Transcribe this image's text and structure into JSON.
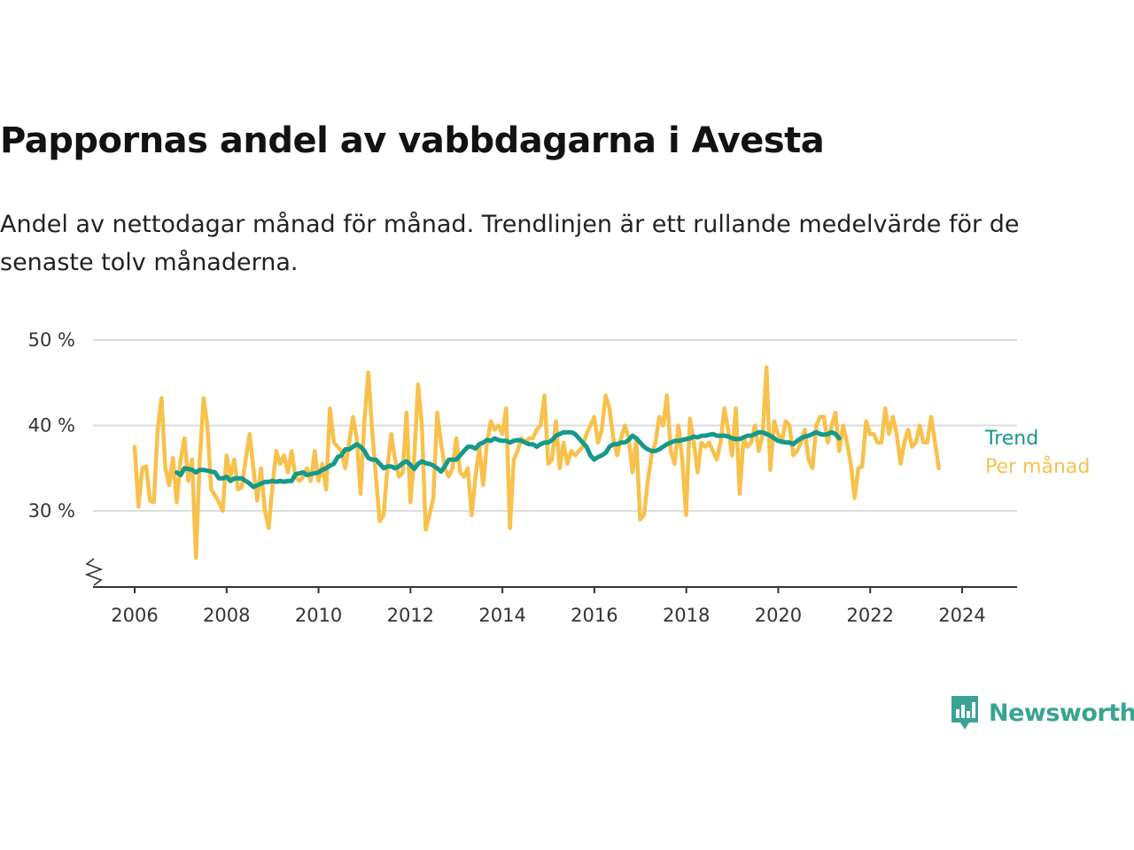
{
  "header": {
    "title": "Pappornas andel av vabbdagarna i Avesta",
    "subtitle": "Andel av nettodagar månad för månad. Trendlinjen är ett rullande medelvärde för de senaste tolv månaderna."
  },
  "brand": {
    "name": "Newsworthy"
  },
  "colors": {
    "monthly": "#f7c14b",
    "trend": "#14998a",
    "grid": "#dddddd",
    "axis": "#333333",
    "brand": "#3aa393"
  },
  "chart_data": {
    "type": "line",
    "x_unit": "year",
    "ylim": [
      20,
      50
    ],
    "y_ticks": [
      30,
      40,
      50
    ],
    "y_tick_labels": [
      "30 %",
      "40 %",
      "50 %"
    ],
    "y_axis_break": true,
    "x_ticks": [
      2006,
      2008,
      2010,
      2012,
      2014,
      2016,
      2018,
      2020,
      2022,
      2024
    ],
    "x_tick_labels": [
      "2006",
      "2008",
      "2010",
      "2012",
      "2014",
      "2016",
      "2018",
      "2020",
      "2022",
      "2024"
    ],
    "grid": true,
    "legend_placement": "right-end-of-lines",
    "series": [
      {
        "name": "Per månad",
        "x_start": 2006.0,
        "step": 0.0833,
        "values": [
          37.5,
          30.5,
          35,
          35.2,
          31.2,
          31,
          39.5,
          43.2,
          35,
          33,
          36.2,
          31,
          36,
          38.5,
          33.5,
          36,
          24.5,
          36,
          43.2,
          40,
          32.5,
          31.8,
          31,
          30,
          36.5,
          34,
          36,
          32.5,
          32.8,
          36,
          39,
          35,
          31.2,
          35,
          30,
          28,
          33,
          37,
          35.5,
          36.5,
          34.5,
          37,
          34,
          33.5,
          34,
          35,
          33.5,
          37,
          33.5,
          35.5,
          32.5,
          42,
          38,
          37.5,
          37,
          35,
          38,
          41,
          38.5,
          32,
          40.5,
          46.2,
          39.5,
          34,
          28.8,
          29.5,
          35,
          39,
          36,
          34,
          34.5,
          41.5,
          31,
          36,
          44.8,
          40,
          27.8,
          29.5,
          31.5,
          41.5,
          38,
          35,
          34,
          35,
          38.5,
          34.5,
          34,
          35,
          29.5,
          34,
          37.5,
          33,
          38,
          40.5,
          39.5,
          40,
          39,
          42,
          28,
          36,
          37,
          38.5,
          38,
          38.5,
          38.5,
          39.5,
          40,
          43.5,
          35.5,
          36,
          40.5,
          35,
          38,
          35.5,
          37,
          36.5,
          37,
          37.5,
          39,
          40,
          41,
          38,
          39.5,
          43.5,
          42,
          38.5,
          36.5,
          38.5,
          40,
          38.5,
          34.5,
          38.5,
          29,
          29.5,
          33.5,
          36.5,
          38,
          41,
          40,
          43.5,
          37,
          35.5,
          40,
          36,
          29.5,
          40.8,
          38,
          34.5,
          38,
          37.5,
          38,
          37,
          36,
          38,
          42,
          39.5,
          36.5,
          42,
          32,
          38.5,
          37.5,
          38,
          40,
          37,
          39,
          46.8,
          34.8,
          40.5,
          39,
          38,
          40.5,
          40,
          36.5,
          37,
          38,
          39.5,
          36,
          35,
          40,
          41,
          41,
          38,
          40,
          41.5,
          37,
          40,
          38,
          35.5,
          31.5,
          35,
          35.2,
          40.5,
          39,
          39,
          38,
          38,
          42,
          39,
          41,
          39,
          35.5,
          38,
          39.5,
          37.5,
          38,
          40,
          38,
          38,
          41,
          38,
          35
        ]
      },
      {
        "name": "Trend",
        "x_start": 2006.9167,
        "step": 0.0833,
        "values": [
          34.5,
          34.2,
          35,
          34.9,
          34.8,
          34.5,
          34.8,
          34.8,
          34.7,
          34.6,
          34.5,
          33.8,
          33.8,
          34,
          33.5,
          33.8,
          33.8,
          33.8,
          33.5,
          33.2,
          32.8,
          33,
          33.2,
          33.4,
          33.4,
          33.5,
          33.4,
          33.5,
          33.4,
          33.5,
          33.5,
          34.3,
          34.4,
          34.5,
          34.2,
          34.3,
          34.4,
          34.5,
          34.8,
          35,
          35.3,
          35.5,
          36.3,
          36.5,
          37.2,
          37.2,
          37.5,
          37.8,
          37.5,
          37,
          36.2,
          36,
          36,
          35.5,
          35,
          35.2,
          35.2,
          35,
          35.2,
          35.6,
          35.8,
          35.4,
          34.9,
          35.5,
          35.8,
          35.6,
          35.5,
          35.3,
          35,
          34.6,
          35.2,
          36,
          36,
          36,
          36.5,
          37,
          37.5,
          37.5,
          37.3,
          37.8,
          38,
          38.3,
          38.2,
          38.5,
          38.3,
          38.2,
          38.2,
          38,
          38.2,
          38.3,
          38.2,
          38,
          37.8,
          37.8,
          37.5,
          37.8,
          38,
          38,
          38.3,
          38.8,
          39,
          39.2,
          39.2,
          39.2,
          39,
          38.5,
          38,
          37.5,
          36.5,
          36,
          36.3,
          36.5,
          36.8,
          37.5,
          37.8,
          37.8,
          38,
          38,
          38.3,
          38.8,
          38.5,
          38,
          37.5,
          37.2,
          37,
          37,
          37.2,
          37.5,
          37.8,
          38,
          38.2,
          38.2,
          38.3,
          38.4,
          38.5,
          38.7,
          38.6,
          38.8,
          38.8,
          38.9,
          39,
          38.8,
          38.8,
          38.8,
          38.7,
          38.5,
          38.4,
          38.4,
          38.6,
          38.8,
          38.8,
          39,
          39.2,
          39.2,
          39,
          38.8,
          38.5,
          38.2,
          38.1,
          38,
          38,
          37.8,
          38.2,
          38.5,
          38.7,
          38.8,
          39,
          39.2,
          39,
          38.9,
          39,
          39.2,
          39,
          38.5
        ]
      }
    ]
  }
}
